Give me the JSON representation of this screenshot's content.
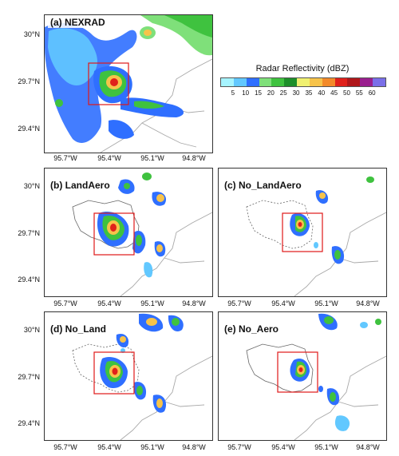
{
  "panels": [
    {
      "id": "a",
      "label": "(a) NEXRAD"
    },
    {
      "id": "b",
      "label": "(b) LandAero"
    },
    {
      "id": "c",
      "label": "(c) No_LandAero"
    },
    {
      "id": "d",
      "label": "(d) No_Land"
    },
    {
      "id": "e",
      "label": "(e) No_Aero"
    }
  ],
  "axes": {
    "lat_labels": [
      "30°N",
      "29.7°N",
      "29.4°N"
    ],
    "lon_labels": [
      "95.7°W",
      "95.4°W",
      "95.1°W",
      "94.8°W"
    ]
  },
  "legend": {
    "title": "Radar Reflectivity (dBZ)",
    "ticks": [
      "5",
      "10",
      "15",
      "20",
      "25",
      "30",
      "35",
      "40",
      "45",
      "50",
      "55",
      "60"
    ],
    "colors": [
      "#a6f4ff",
      "#62c8ff",
      "#2f6fff",
      "#7fe07a",
      "#3fc23f",
      "#1e8f2a",
      "#f0f070",
      "#f7c34a",
      "#f38a2a",
      "#e0211b",
      "#b0171a",
      "#9a1f8f",
      "#7a6fe8"
    ]
  },
  "colors": {
    "highlight_box": "#e01818",
    "coastline": "#a8a8a8",
    "urban_boundary": "#666666"
  }
}
